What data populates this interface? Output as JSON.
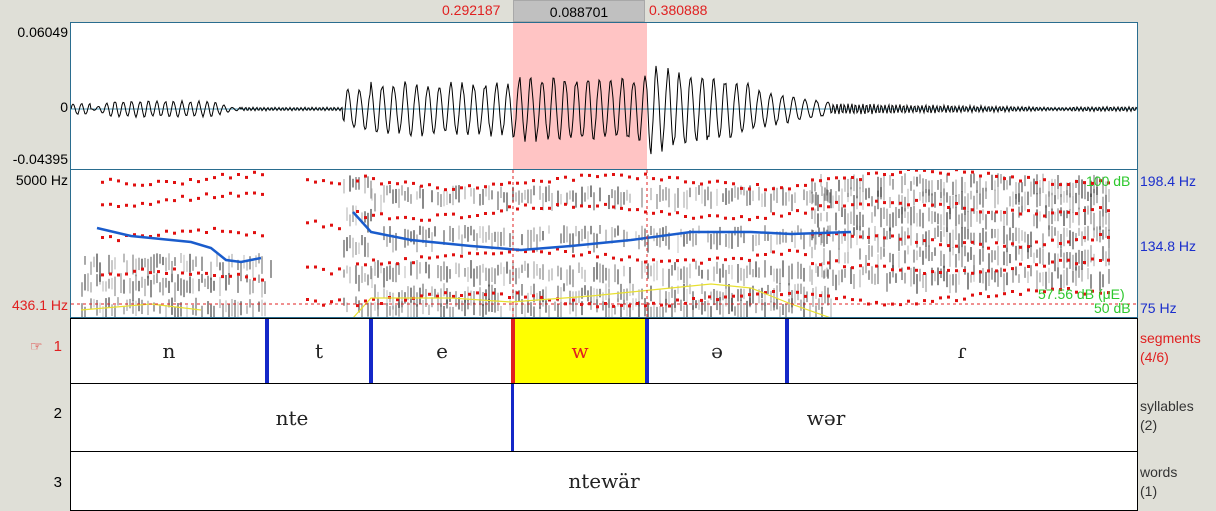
{
  "selection": {
    "start": "0.292187",
    "duration": "0.088701",
    "end": "0.380888"
  },
  "waveform": {
    "max": "0.06049",
    "zero": "0",
    "min": "-0.04395"
  },
  "spectrogram": {
    "freq_top": "5000 Hz",
    "cursor_freq": "436.1 Hz",
    "intensity_top": "100 dB",
    "intensity_cursor": "57.56 dB (μE)",
    "intensity_bottom": "50 dB",
    "pitch_top": "198.4 Hz",
    "pitch_cursor": "134.8 Hz",
    "pitch_bottom": "75 Hz"
  },
  "colors": {
    "selection": "#ff9999",
    "pitch": "#1a5ccc",
    "formant": "#e01010",
    "intensity": "#e8e030",
    "highlight": "#ffff00",
    "boundary": "#1428c8"
  },
  "tiers": [
    {
      "number": "1",
      "name": "segments",
      "count": "(4/6)",
      "active": true,
      "intervals": [
        "n",
        "t",
        "e",
        "w",
        "ə",
        "ɾ"
      ]
    },
    {
      "number": "2",
      "name": "syllables",
      "count": "(2)",
      "intervals": [
        "nte",
        "wər"
      ]
    },
    {
      "number": "3",
      "name": "words",
      "count": "(1)",
      "intervals": [
        "ntewär"
      ]
    }
  ],
  "active_tier_icon": "pointing-hand-icon"
}
